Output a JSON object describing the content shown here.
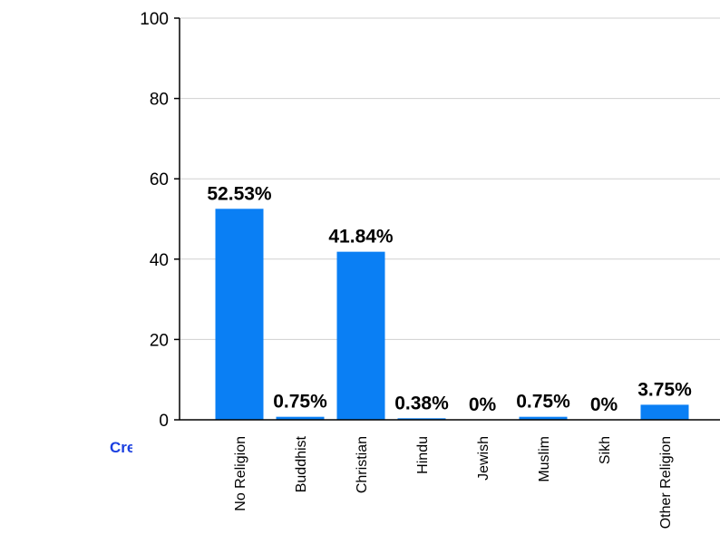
{
  "link": {
    "create_label": "Create  new"
  },
  "colors": {
    "bar": "#0a7ff4",
    "axis": "#000000",
    "grid": "#d0d0d0"
  },
  "chart_data": {
    "type": "bar",
    "title": "",
    "xlabel": "",
    "ylabel": "",
    "categories": [
      "No Religion",
      "Buddhist",
      "Christian",
      "Hindu",
      "Jewish",
      "Muslim",
      "Sikh",
      "Other Religion"
    ],
    "values": [
      52.53,
      0.75,
      41.84,
      0.38,
      0,
      0.75,
      0,
      3.75
    ],
    "data_labels": [
      "52.53%",
      "0.75%",
      "41.84%",
      "0.38%",
      "0%",
      "0.75%",
      "0%",
      "3.75%"
    ],
    "ylim": [
      0,
      100
    ],
    "yticks": [
      0,
      20,
      40,
      60,
      80,
      100
    ],
    "grid": true
  }
}
